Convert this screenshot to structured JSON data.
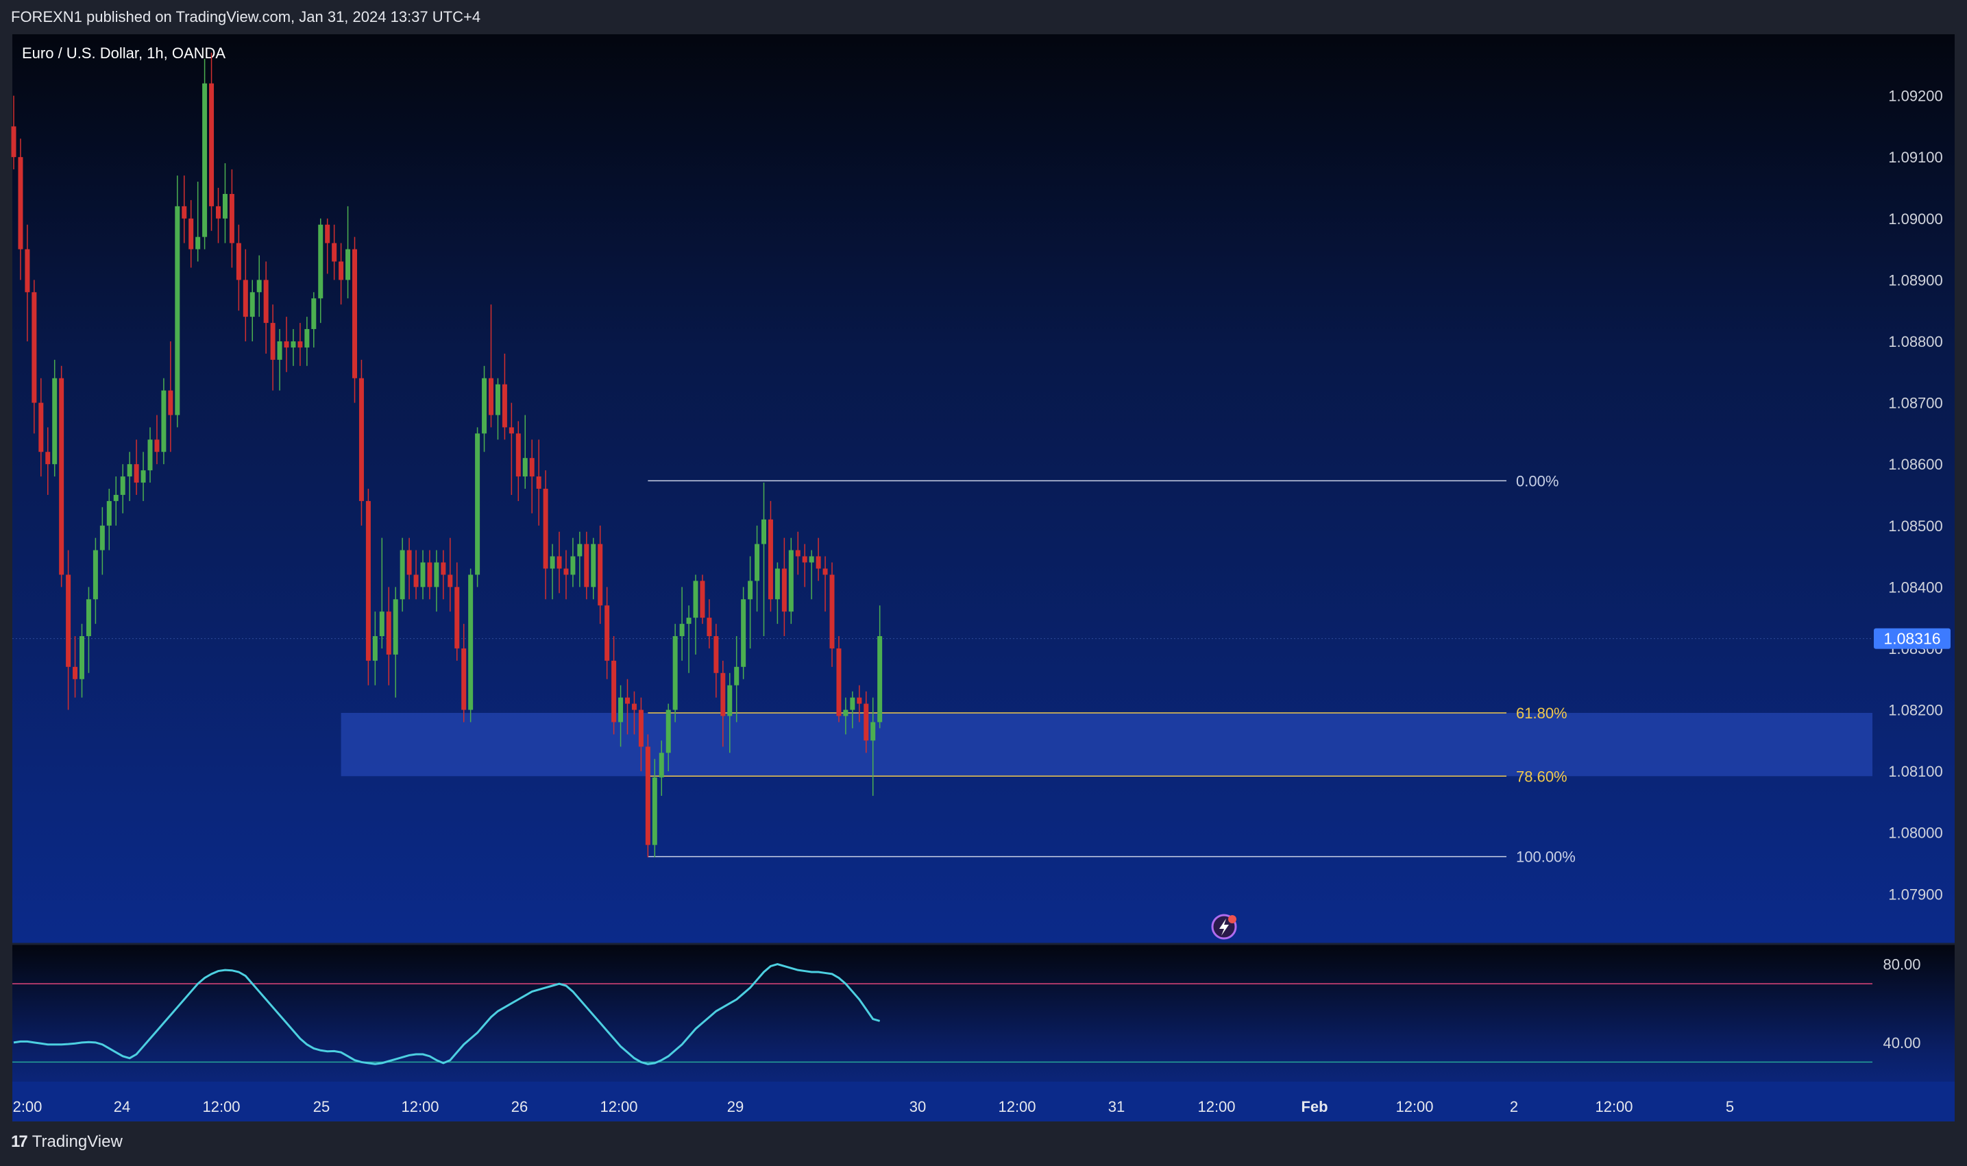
{
  "header": {
    "published": "FOREXN1 published on TradingView.com, Jan 31, 2024 13:37 UTC+4"
  },
  "chart_title": "Euro / U.S. Dollar, 1h, OANDA",
  "footer": {
    "brand": "TradingView"
  },
  "colors": {
    "up": "#4caf50",
    "down": "#d32f2f",
    "zone": "#1e3fa6",
    "fib_line": "#c9d1e6",
    "fib_label_gold": "#f2c94c",
    "price_badge": "#3d7bff",
    "rsi_line": "#4dd0e1",
    "rsi_upper": "#e0457b",
    "rsi_lower": "#26a69a"
  },
  "icons": [
    "bolt-alert-icon",
    "tradingview-logo-icon"
  ],
  "chart_data": [
    {
      "type": "candlestick",
      "title": "Euro / U.S. Dollar, 1h, OANDA",
      "ylim": [
        1.0782,
        1.093
      ],
      "y_ticks": [
        "1.09200",
        "1.09100",
        "1.09000",
        "1.08900",
        "1.08800",
        "1.08700",
        "1.08600",
        "1.08500",
        "1.08400",
        "1.08300",
        "1.08200",
        "1.08100",
        "1.08000",
        "1.07900"
      ],
      "x_ticks": [
        "2:00",
        "24",
        "12:00",
        "25",
        "12:00",
        "26",
        "12:00",
        "29",
        "30",
        "12:00",
        "31",
        "12:00",
        "Feb",
        "12:00",
        "2",
        "12:00",
        "5"
      ],
      "current_price": "1.08316",
      "candles": [
        [
          1.0915,
          1.092,
          1.0908,
          1.091
        ],
        [
          1.091,
          1.0913,
          1.089,
          1.0895
        ],
        [
          1.0895,
          1.0899,
          1.088,
          1.0888
        ],
        [
          1.0888,
          1.089,
          1.0865,
          1.087
        ],
        [
          1.087,
          1.0874,
          1.0858,
          1.0862
        ],
        [
          1.0862,
          1.0866,
          1.0855,
          1.086
        ],
        [
          1.086,
          1.0877,
          1.0858,
          1.0874
        ],
        [
          1.0874,
          1.0876,
          1.084,
          1.0842
        ],
        [
          1.0842,
          1.0846,
          1.082,
          1.0827
        ],
        [
          1.0827,
          1.0832,
          1.0822,
          1.0825
        ],
        [
          1.0825,
          1.0834,
          1.0822,
          1.0832
        ],
        [
          1.0832,
          1.084,
          1.0826,
          1.0838
        ],
        [
          1.0838,
          1.0848,
          1.0834,
          1.0846
        ],
        [
          1.0846,
          1.0853,
          1.0842,
          1.085
        ],
        [
          1.085,
          1.0856,
          1.0846,
          1.0854
        ],
        [
          1.0854,
          1.0858,
          1.085,
          1.0855
        ],
        [
          1.0855,
          1.086,
          1.0852,
          1.0858
        ],
        [
          1.0858,
          1.0862,
          1.0854,
          1.086
        ],
        [
          1.086,
          1.0864,
          1.0855,
          1.0857
        ],
        [
          1.0857,
          1.0862,
          1.0854,
          1.0859
        ],
        [
          1.0859,
          1.0866,
          1.0857,
          1.0864
        ],
        [
          1.0864,
          1.0868,
          1.086,
          1.0862
        ],
        [
          1.0862,
          1.0874,
          1.086,
          1.0872
        ],
        [
          1.0872,
          1.088,
          1.0862,
          1.0868
        ],
        [
          1.0868,
          1.0907,
          1.0866,
          1.0902
        ],
        [
          1.0902,
          1.0907,
          1.0896,
          1.09
        ],
        [
          1.09,
          1.0903,
          1.0892,
          1.0895
        ],
        [
          1.0895,
          1.0906,
          1.0893,
          1.0897
        ],
        [
          1.0897,
          1.0926,
          1.0895,
          1.0922
        ],
        [
          1.0922,
          1.0927,
          1.0898,
          1.0902
        ],
        [
          1.0902,
          1.0905,
          1.0896,
          1.09
        ],
        [
          1.09,
          1.0909,
          1.0896,
          1.0904
        ],
        [
          1.0904,
          1.0908,
          1.0892,
          1.0896
        ],
        [
          1.0896,
          1.0899,
          1.0885,
          1.089
        ],
        [
          1.089,
          1.0895,
          1.088,
          1.0884
        ],
        [
          1.0884,
          1.089,
          1.088,
          1.0888
        ],
        [
          1.0888,
          1.0894,
          1.0884,
          1.089
        ],
        [
          1.089,
          1.0893,
          1.0878,
          1.0883
        ],
        [
          1.0883,
          1.0886,
          1.0872,
          1.0877
        ],
        [
          1.0877,
          1.0882,
          1.0872,
          1.088
        ],
        [
          1.088,
          1.0884,
          1.0875,
          1.0879
        ],
        [
          1.0879,
          1.0882,
          1.0876,
          1.088
        ],
        [
          1.088,
          1.0883,
          1.0876,
          1.0879
        ],
        [
          1.0879,
          1.0884,
          1.0876,
          1.0882
        ],
        [
          1.0882,
          1.0888,
          1.0879,
          1.0887
        ],
        [
          1.0887,
          1.09,
          1.0883,
          1.0899
        ],
        [
          1.0899,
          1.09,
          1.0891,
          1.0896
        ],
        [
          1.0896,
          1.0899,
          1.089,
          1.0893
        ],
        [
          1.0893,
          1.0896,
          1.0886,
          1.089
        ],
        [
          1.089,
          1.0902,
          1.0887,
          1.0895
        ],
        [
          1.0895,
          1.0897,
          1.087,
          1.0874
        ],
        [
          1.0874,
          1.0877,
          1.085,
          1.0854
        ],
        [
          1.0854,
          1.0856,
          1.0824,
          1.0828
        ],
        [
          1.0828,
          1.0836,
          1.0824,
          1.0832
        ],
        [
          1.0832,
          1.0848,
          1.083,
          1.0836
        ],
        [
          1.0836,
          1.084,
          1.0824,
          1.0829
        ],
        [
          1.0829,
          1.084,
          1.0822,
          1.0838
        ],
        [
          1.0838,
          1.0848,
          1.0836,
          1.0846
        ],
        [
          1.0846,
          1.0848,
          1.0838,
          1.0842
        ],
        [
          1.0842,
          1.0846,
          1.0838,
          1.084
        ],
        [
          1.084,
          1.0846,
          1.0838,
          1.0844
        ],
        [
          1.0844,
          1.0846,
          1.0838,
          1.084
        ],
        [
          1.084,
          1.0846,
          1.0836,
          1.0844
        ],
        [
          1.0844,
          1.0846,
          1.0838,
          1.0842
        ],
        [
          1.0842,
          1.0848,
          1.0836,
          1.084
        ],
        [
          1.084,
          1.0844,
          1.0828,
          1.083
        ],
        [
          1.083,
          1.0834,
          1.0818,
          1.082
        ],
        [
          1.082,
          1.0843,
          1.0818,
          1.0842
        ],
        [
          1.0842,
          1.0866,
          1.084,
          1.0865
        ],
        [
          1.0865,
          1.0876,
          1.0862,
          1.0874
        ],
        [
          1.0874,
          1.0886,
          1.0866,
          1.0868
        ],
        [
          1.0868,
          1.0874,
          1.0864,
          1.0873
        ],
        [
          1.0873,
          1.0878,
          1.0864,
          1.0866
        ],
        [
          1.0866,
          1.087,
          1.0855,
          1.0865
        ],
        [
          1.0865,
          1.0867,
          1.0854,
          1.0858
        ],
        [
          1.0858,
          1.0868,
          1.0856,
          1.0861
        ],
        [
          1.0861,
          1.0864,
          1.0852,
          1.0858
        ],
        [
          1.0858,
          1.0864,
          1.085,
          1.0856
        ],
        [
          1.0856,
          1.0859,
          1.0838,
          1.0843
        ],
        [
          1.0843,
          1.0847,
          1.0838,
          1.0845
        ],
        [
          1.0845,
          1.0849,
          1.0839,
          1.0843
        ],
        [
          1.0843,
          1.0846,
          1.0838,
          1.0842
        ],
        [
          1.0842,
          1.0848,
          1.084,
          1.0845
        ],
        [
          1.0845,
          1.0849,
          1.084,
          1.0847
        ],
        [
          1.0847,
          1.0849,
          1.0838,
          1.084
        ],
        [
          1.084,
          1.0848,
          1.0838,
          1.0847
        ],
        [
          1.0847,
          1.085,
          1.0834,
          1.0837
        ],
        [
          1.0837,
          1.084,
          1.0825,
          1.0828
        ],
        [
          1.0828,
          1.0832,
          1.0816,
          1.0818
        ],
        [
          1.0818,
          1.0824,
          1.0814,
          1.0822
        ],
        [
          1.0822,
          1.0825,
          1.0816,
          1.0821
        ],
        [
          1.0821,
          1.0823,
          1.0816,
          1.082
        ],
        [
          1.082,
          1.0822,
          1.081,
          1.0814
        ],
        [
          1.0814,
          1.0816,
          1.0796,
          1.0798
        ],
        [
          1.0798,
          1.0812,
          1.0796,
          1.0809
        ],
        [
          1.0809,
          1.0815,
          1.0806,
          1.0813
        ],
        [
          1.0813,
          1.0821,
          1.081,
          1.082
        ],
        [
          1.082,
          1.0834,
          1.0818,
          1.0832
        ],
        [
          1.0832,
          1.084,
          1.0828,
          1.0834
        ],
        [
          1.0834,
          1.0837,
          1.0826,
          1.0835
        ],
        [
          1.0835,
          1.0842,
          1.0829,
          1.0841
        ],
        [
          1.0841,
          1.0842,
          1.0834,
          1.0835
        ],
        [
          1.0835,
          1.0838,
          1.083,
          1.0832
        ],
        [
          1.0832,
          1.0834,
          1.0822,
          1.0826
        ],
        [
          1.0826,
          1.0828,
          1.0814,
          1.0819
        ],
        [
          1.0819,
          1.0826,
          1.0813,
          1.0824
        ],
        [
          1.0824,
          1.0832,
          1.0818,
          1.0827
        ],
        [
          1.0827,
          1.084,
          1.0825,
          1.0838
        ],
        [
          1.0838,
          1.0845,
          1.083,
          1.0841
        ],
        [
          1.0841,
          1.085,
          1.0836,
          1.0847
        ],
        [
          1.0847,
          1.0857,
          1.0832,
          1.0851
        ],
        [
          1.0851,
          1.0854,
          1.0836,
          1.0838
        ],
        [
          1.0838,
          1.0844,
          1.0834,
          1.0843
        ],
        [
          1.0843,
          1.0848,
          1.0832,
          1.0836
        ],
        [
          1.0836,
          1.0848,
          1.0834,
          1.0846
        ],
        [
          1.0846,
          1.0849,
          1.0842,
          1.0845
        ],
        [
          1.0845,
          1.0847,
          1.084,
          1.0844
        ],
        [
          1.0844,
          1.0846,
          1.0838,
          1.0845
        ],
        [
          1.0845,
          1.0848,
          1.0841,
          1.0843
        ],
        [
          1.0843,
          1.0845,
          1.0836,
          1.0842
        ],
        [
          1.0842,
          1.0844,
          1.0827,
          1.083
        ],
        [
          1.083,
          1.0832,
          1.0818,
          1.0819
        ],
        [
          1.0819,
          1.0822,
          1.0816,
          1.082
        ],
        [
          1.082,
          1.0823,
          1.0817,
          1.0822
        ],
        [
          1.0822,
          1.0824,
          1.0818,
          1.0821
        ],
        [
          1.0821,
          1.0823,
          1.0813,
          1.0815
        ],
        [
          1.0815,
          1.0822,
          1.0806,
          1.0818
        ],
        [
          1.0818,
          1.0837,
          1.0817,
          1.0832
        ]
      ],
      "fib_levels": [
        {
          "label": "0.00%",
          "price": 1.08573,
          "color": "#c9d1e6"
        },
        {
          "label": "61.80%",
          "price": 1.08195,
          "color": "#f2c94c"
        },
        {
          "label": "78.60%",
          "price": 1.08092,
          "color": "#f2c94c"
        },
        {
          "label": "100.00%",
          "price": 1.07961,
          "color": "#c9d1e6"
        }
      ],
      "zone": {
        "from": 1.08092,
        "to": 1.08195
      }
    },
    {
      "type": "line",
      "name": "RSI",
      "ylim": [
        20,
        90
      ],
      "y_ticks": [
        "80.00",
        "40.00"
      ],
      "bands": [
        70,
        30
      ],
      "values": [
        40,
        40.5,
        40.5,
        40,
        39.5,
        39,
        39,
        39,
        39.2,
        39.5,
        40,
        40.2,
        40,
        39,
        37,
        35,
        33,
        32,
        34,
        38,
        42,
        46,
        50,
        54,
        58,
        62,
        66,
        70,
        73,
        75,
        76.5,
        77,
        76.8,
        76,
        74,
        70,
        66,
        62,
        58,
        54,
        50,
        46,
        42,
        39,
        37,
        36,
        35.5,
        35.6,
        35,
        33,
        31,
        30,
        29.5,
        29,
        29.5,
        30.5,
        31.5,
        32.5,
        33.5,
        34,
        34,
        33,
        31,
        29.5,
        31,
        35,
        39,
        42,
        45,
        49,
        53,
        56,
        58,
        60,
        62,
        64,
        66,
        67,
        68,
        69,
        70,
        69,
        66,
        62,
        58,
        54,
        50,
        46,
        42,
        38,
        35,
        32,
        30,
        29,
        29.5,
        31,
        33,
        36,
        39,
        43,
        47,
        50,
        53,
        56,
        58,
        60,
        62,
        65,
        68,
        72,
        76,
        79,
        80,
        79,
        78,
        77,
        76.5,
        76,
        76,
        75.5,
        75,
        73,
        70,
        66,
        62,
        57,
        52,
        51
      ]
    }
  ]
}
